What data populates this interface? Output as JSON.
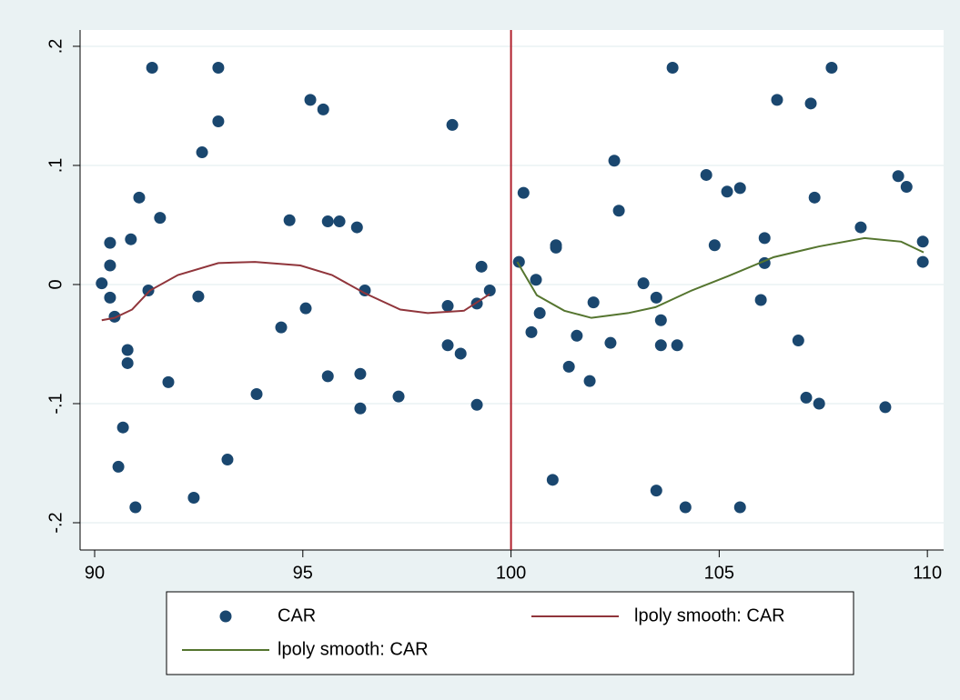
{
  "chart_data": {
    "type": "scatter",
    "xlim": [
      89.65,
      110.39
    ],
    "ylim": [
      -0.2229,
      0.2137
    ],
    "xticks": [
      90,
      95,
      100,
      105,
      110
    ],
    "yticks": [
      {
        "value": 0.2,
        "label": ".2"
      },
      {
        "value": 0.1,
        "label": ".1"
      },
      {
        "value": 0,
        "label": "0"
      },
      {
        "value": -0.1,
        "label": "-.1"
      },
      {
        "value": -0.2,
        "label": "-.2"
      }
    ],
    "grid": true,
    "xline": 100,
    "xline_color": "#b0202c",
    "series": [
      {
        "name": "CAR",
        "type": "scatter",
        "color": "#1a476f",
        "x": [
          90.17,
          90.37,
          90.37,
          90.37,
          90.48,
          90.79,
          90.79,
          90.68,
          90.57,
          90.98,
          90.87,
          91.07,
          91.38,
          91.29,
          91.57,
          91.77,
          92.38,
          92.49,
          92.58,
          92.97,
          92.97,
          93.19,
          93.89,
          94.48,
          94.68,
          95.07,
          95.18,
          95.49,
          95.6,
          95.6,
          95.88,
          96.3,
          96.38,
          96.38,
          96.49,
          97.3,
          98.48,
          98.48,
          98.59,
          98.79,
          99.18,
          99.18,
          99.29,
          99.49,
          100.19,
          100.3,
          100.49,
          100.6,
          100.69,
          101.0,
          101.08,
          101.08,
          101.39,
          101.58,
          101.89,
          101.98,
          102.39,
          102.48,
          102.59,
          103.18,
          103.49,
          103.49,
          103.6,
          103.6,
          103.88,
          103.99,
          104.19,
          104.69,
          104.89,
          105.19,
          105.5,
          105.5,
          106.0,
          106.09,
          106.09,
          106.39,
          106.9,
          107.09,
          107.2,
          107.29,
          107.4,
          107.7,
          108.4,
          108.99,
          109.3,
          109.5,
          109.89,
          109.89
        ],
        "values": [
          0.001,
          0.035,
          0.016,
          -0.011,
          -0.027,
          -0.055,
          -0.066,
          -0.12,
          -0.153,
          -0.187,
          0.038,
          0.073,
          0.182,
          -0.005,
          0.056,
          -0.082,
          -0.179,
          -0.01,
          0.111,
          0.182,
          0.137,
          -0.147,
          -0.092,
          -0.036,
          0.054,
          -0.02,
          0.155,
          0.147,
          -0.077,
          0.053,
          0.053,
          0.048,
          -0.075,
          -0.104,
          -0.005,
          -0.094,
          -0.018,
          -0.051,
          0.134,
          -0.058,
          -0.101,
          -0.016,
          0.015,
          -0.005,
          0.019,
          0.077,
          -0.04,
          0.004,
          -0.024,
          -0.164,
          0.033,
          0.031,
          -0.069,
          -0.043,
          -0.081,
          -0.015,
          -0.049,
          0.104,
          0.062,
          0.001,
          -0.011,
          -0.173,
          -0.03,
          -0.051,
          0.182,
          -0.051,
          -0.187,
          0.092,
          0.033,
          0.078,
          0.081,
          -0.187,
          -0.013,
          0.018,
          0.039,
          0.155,
          -0.047,
          -0.095,
          0.152,
          0.073,
          -0.1,
          0.182,
          0.048,
          -0.103,
          0.091,
          0.082,
          0.036,
          0.019
        ]
      },
      {
        "name": "lpoly smooth: CAR",
        "type": "line",
        "color": "#90353b",
        "x": [
          90.17,
          90.48,
          90.9,
          91.33,
          92.0,
          92.97,
          93.85,
          94.94,
          95.7,
          96.47,
          97.34,
          98.0,
          98.87,
          99.49
        ],
        "values": [
          -0.03,
          -0.028,
          -0.021,
          -0.005,
          0.008,
          0.018,
          0.019,
          0.016,
          0.008,
          -0.007,
          -0.021,
          -0.024,
          -0.022,
          -0.008
        ]
      },
      {
        "name": "lpoly smooth: CAR",
        "type": "line",
        "color": "#55752f",
        "x": [
          100.15,
          100.62,
          101.28,
          101.93,
          102.81,
          103.47,
          104.34,
          105.21,
          106.31,
          107.4,
          108.49,
          109.37,
          109.91
        ],
        "values": [
          0.019,
          -0.009,
          -0.022,
          -0.028,
          -0.024,
          -0.019,
          -0.005,
          0.007,
          0.023,
          0.032,
          0.039,
          0.036,
          0.027
        ]
      }
    ]
  }
}
